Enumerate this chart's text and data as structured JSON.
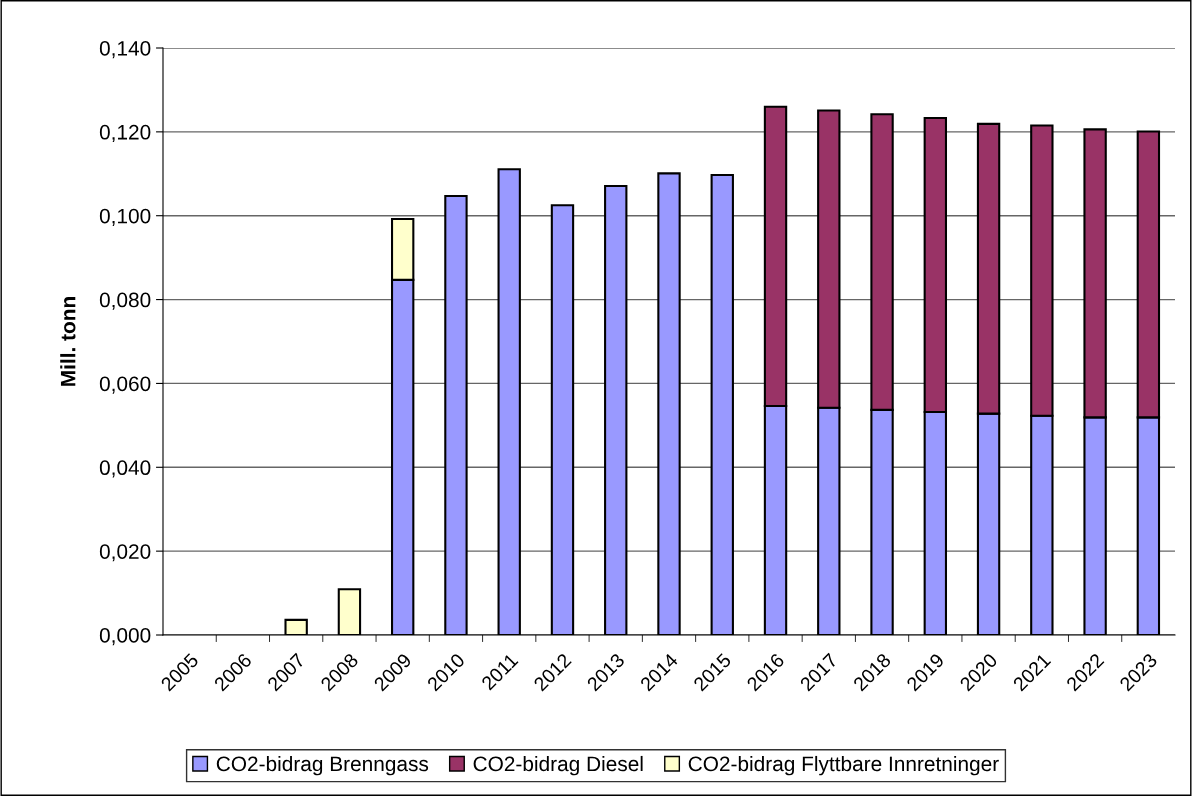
{
  "chart_data": {
    "type": "bar",
    "stacked": true,
    "ylabel": "Mill. tonn",
    "categories": [
      "2005",
      "2006",
      "2007",
      "2008",
      "2009",
      "2010",
      "2011",
      "2012",
      "2013",
      "2014",
      "2015",
      "2016",
      "2017",
      "2018",
      "2019",
      "2020",
      "2021",
      "2022",
      "2023"
    ],
    "series": [
      {
        "name": "CO2-bidrag Brenngass",
        "color": "#9999ff",
        "values": [
          null,
          null,
          null,
          null,
          0.0847,
          0.1047,
          0.1111,
          0.1025,
          0.1071,
          0.1101,
          0.1097,
          0.0546,
          0.0542,
          0.0537,
          0.0532,
          0.0528,
          0.0523,
          0.0519,
          0.0519
        ]
      },
      {
        "name": "CO2-bidrag Diesel",
        "color": "#993366",
        "values": [
          null,
          null,
          null,
          null,
          null,
          null,
          null,
          null,
          null,
          null,
          null,
          0.0714,
          0.0709,
          0.0705,
          0.0701,
          0.0691,
          0.0692,
          0.0687,
          0.0682
        ]
      },
      {
        "name": "CO2-bidrag Flyttbare Innretninger",
        "color": "#ffffcc",
        "values": [
          null,
          null,
          0.0036,
          0.0109,
          0.0145,
          null,
          null,
          null,
          null,
          null,
          null,
          null,
          null,
          null,
          null,
          null,
          null,
          null,
          null
        ]
      }
    ],
    "ylim": [
      0,
      0.14
    ],
    "yticks": [
      {
        "value": 0,
        "label": "0,000"
      },
      {
        "value": 0.02,
        "label": "0,020"
      },
      {
        "value": 0.04,
        "label": "0,040"
      },
      {
        "value": 0.06,
        "label": "0,060"
      },
      {
        "value": 0.08,
        "label": "0,080"
      },
      {
        "value": 0.1,
        "label": "0,100"
      },
      {
        "value": 0.12,
        "label": "0,120"
      },
      {
        "value": 0.14,
        "label": "0,140"
      }
    ],
    "grid": "y",
    "legend": "bottom"
  }
}
